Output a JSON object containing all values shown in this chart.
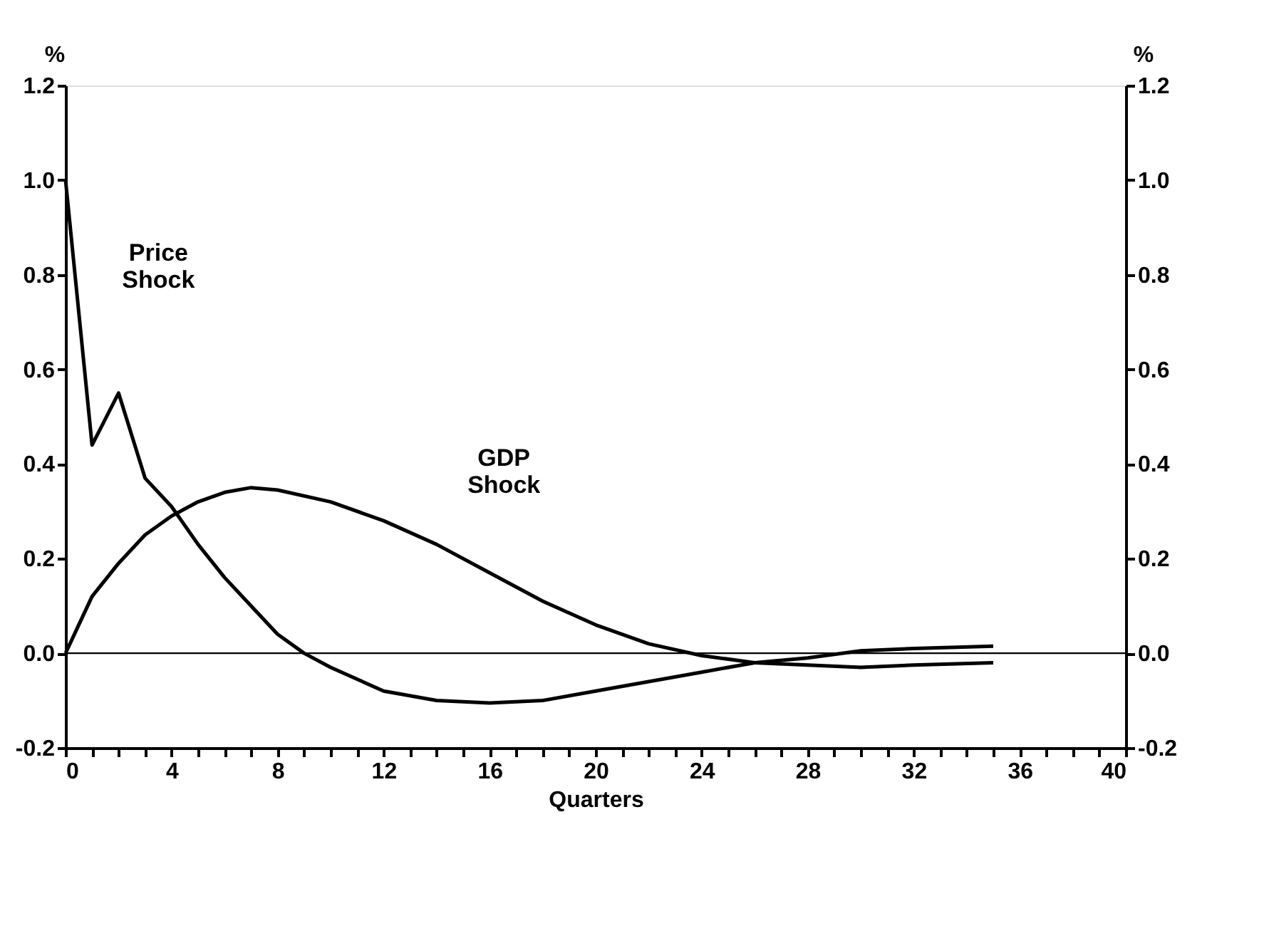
{
  "chart_data": {
    "type": "line",
    "xlabel": "Quarters",
    "ylabel": "%",
    "y2label": "%",
    "xlim": [
      0,
      40
    ],
    "xticks": [
      0,
      {
        "value": 1,
        "label": null
      },
      {
        "value": 2,
        "label": null
      },
      {
        "value": 3,
        "label": null
      },
      4,
      {
        "value": 5,
        "label": null
      },
      {
        "value": 6,
        "label": null
      },
      {
        "value": 7,
        "label": null
      },
      8,
      {
        "value": 9,
        "label": null
      },
      {
        "value": 10,
        "label": null
      },
      {
        "value": 11,
        "label": null
      },
      12,
      {
        "value": 13,
        "label": null
      },
      {
        "value": 14,
        "label": null
      },
      {
        "value": 15,
        "label": null
      },
      16,
      {
        "value": 17,
        "label": null
      },
      {
        "value": 18,
        "label": null
      },
      {
        "value": 19,
        "label": null
      },
      20,
      {
        "value": 21,
        "label": null
      },
      {
        "value": 22,
        "label": null
      },
      {
        "value": 23,
        "label": null
      },
      24,
      {
        "value": 25,
        "label": null
      },
      {
        "value": 26,
        "label": null
      },
      {
        "value": 27,
        "label": null
      },
      28,
      {
        "value": 29,
        "label": null
      },
      {
        "value": 30,
        "label": null
      },
      {
        "value": 31,
        "label": null
      },
      32,
      {
        "value": 33,
        "label": null
      },
      {
        "value": 34,
        "label": null
      },
      {
        "value": 35,
        "label": null
      },
      36,
      {
        "value": 37,
        "label": null
      },
      {
        "value": 38,
        "label": null
      },
      {
        "value": 39,
        "label": null
      },
      40
    ],
    "ylim": [
      -0.2,
      1.2
    ],
    "yticks": [
      {
        "value": -0.2,
        "label": "-0.2"
      },
      {
        "value": 0,
        "label": "0.0"
      },
      {
        "value": 0.2,
        "label": "0.2"
      },
      {
        "value": 0.4,
        "label": "0.4"
      },
      {
        "value": 0.6,
        "label": "0.6"
      },
      {
        "value": 0.8,
        "label": "0.8"
      },
      {
        "value": 1.0,
        "label": "1.0"
      },
      {
        "value": 1.2,
        "label": "1.2"
      }
    ],
    "y2lim": [
      -0.2,
      1.2
    ],
    "y2ticks": [
      {
        "value": -0.2,
        "label": "-0.2"
      },
      {
        "value": 0,
        "label": "0.0"
      },
      {
        "value": 0.2,
        "label": "0.2"
      },
      {
        "value": 0.4,
        "label": "0.4"
      },
      {
        "value": 0.6,
        "label": "0.6"
      },
      {
        "value": 0.8,
        "label": "0.8"
      },
      {
        "value": 1.0,
        "label": "1.0"
      },
      {
        "value": 1.2,
        "label": "1.2"
      }
    ],
    "series": [
      {
        "name": "Price Shock",
        "color": "#000000",
        "x": [
          0,
          1,
          2,
          3,
          4,
          5,
          6,
          7,
          8,
          9,
          10,
          12,
          14,
          16,
          18,
          20,
          22,
          24,
          26,
          28,
          30,
          32,
          35
        ],
        "values": [
          1.0,
          0.44,
          0.55,
          0.37,
          0.31,
          0.23,
          0.16,
          0.1,
          0.04,
          0.0,
          -0.03,
          -0.08,
          -0.1,
          -0.105,
          -0.1,
          -0.08,
          -0.06,
          -0.04,
          -0.02,
          -0.01,
          0.005,
          0.01,
          0.015
        ]
      },
      {
        "name": "GDP Shock",
        "color": "#000000",
        "x": [
          0,
          1,
          2,
          3,
          4,
          5,
          6,
          7,
          8,
          10,
          12,
          14,
          16,
          18,
          20,
          22,
          24,
          26,
          28,
          30,
          32,
          35
        ],
        "values": [
          0.0,
          0.12,
          0.19,
          0.25,
          0.29,
          0.32,
          0.34,
          0.35,
          0.345,
          0.32,
          0.28,
          0.23,
          0.17,
          0.11,
          0.06,
          0.02,
          -0.005,
          -0.02,
          -0.025,
          -0.03,
          -0.025,
          -0.02
        ]
      }
    ],
    "ref_lines": [
      {
        "axis": "y",
        "value": 0,
        "color": "#000000"
      }
    ],
    "grid": false,
    "marker": "none",
    "line_style": "solid"
  }
}
